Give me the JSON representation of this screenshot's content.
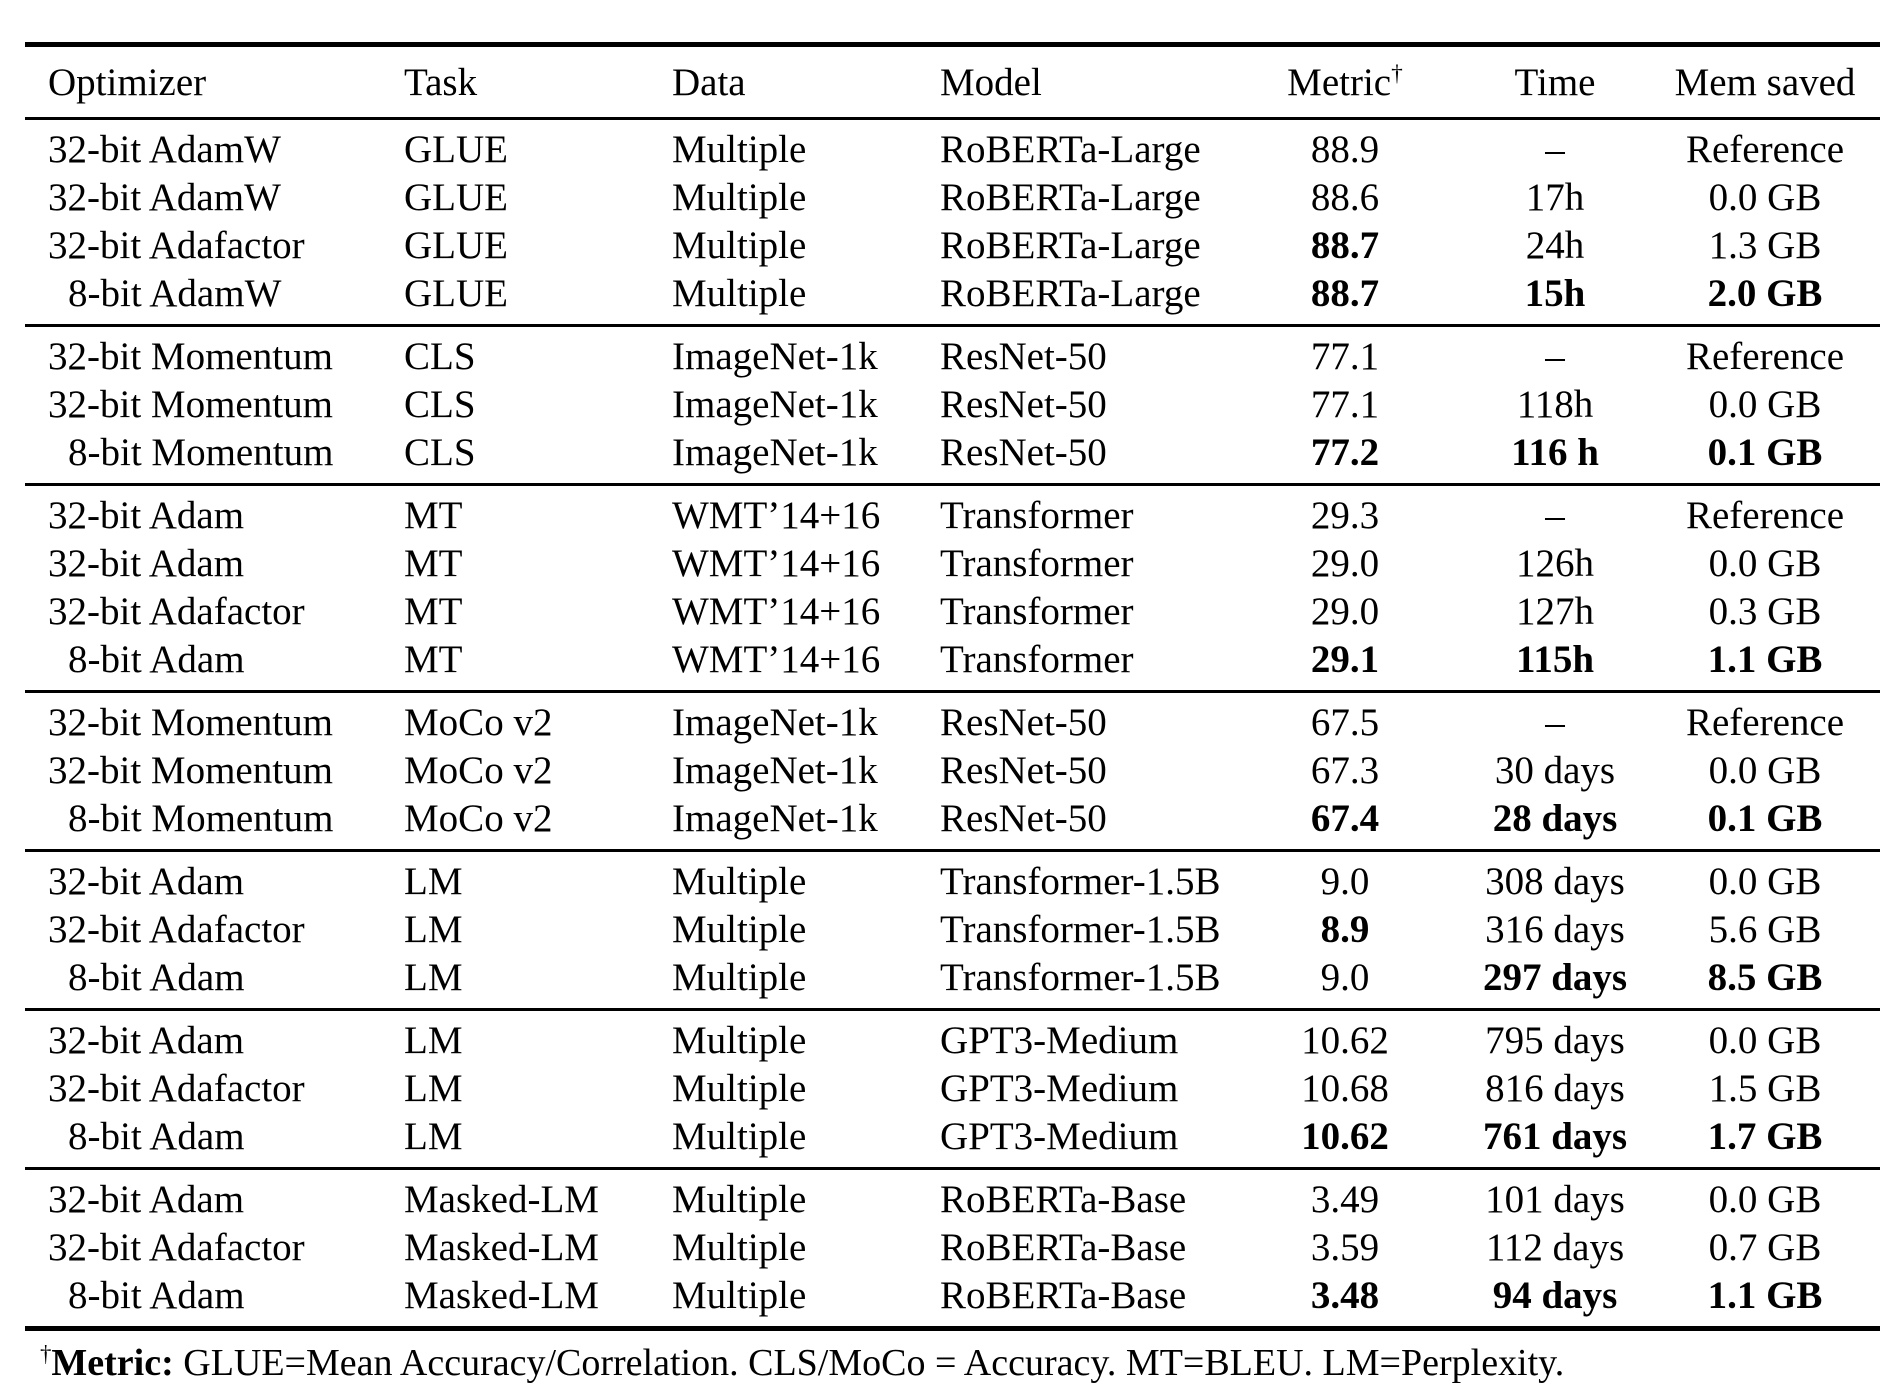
{
  "table": {
    "columns": [
      {
        "key": "optimizer",
        "label": "Optimizer"
      },
      {
        "key": "task",
        "label": "Task"
      },
      {
        "key": "data",
        "label": "Data"
      },
      {
        "key": "model",
        "label": "Model"
      },
      {
        "key": "metric",
        "label": "Metric",
        "superscript": "†"
      },
      {
        "key": "time",
        "label": "Time"
      },
      {
        "key": "mem",
        "label": "Mem saved"
      }
    ],
    "groups": [
      {
        "rows": [
          {
            "optimizer": "32-bit AdamW",
            "task": "GLUE",
            "data": "Multiple",
            "model": "RoBERTa-Large",
            "metric": "88.9",
            "time": "–",
            "mem": "Reference",
            "bold": []
          },
          {
            "optimizer": "32-bit AdamW",
            "task": "GLUE",
            "data": "Multiple",
            "model": "RoBERTa-Large",
            "metric": "88.6",
            "time": "17h",
            "mem": "0.0 GB",
            "bold": []
          },
          {
            "optimizer": "32-bit Adafactor",
            "task": "GLUE",
            "data": "Multiple",
            "model": "RoBERTa-Large",
            "metric": "88.7",
            "time": "24h",
            "mem": "1.3 GB",
            "bold": [
              "metric"
            ]
          },
          {
            "optimizer": "8-bit AdamW",
            "task": "GLUE",
            "data": "Multiple",
            "model": "RoBERTa-Large",
            "metric": "88.7",
            "time": "15h",
            "mem": "2.0 GB",
            "bold": [
              "metric",
              "time",
              "mem"
            ]
          }
        ]
      },
      {
        "rows": [
          {
            "optimizer": "32-bit Momentum",
            "task": "CLS",
            "data": "ImageNet-1k",
            "model": "ResNet-50",
            "metric": "77.1",
            "time": "–",
            "mem": "Reference",
            "bold": []
          },
          {
            "optimizer": "32-bit Momentum",
            "task": "CLS",
            "data": "ImageNet-1k",
            "model": "ResNet-50",
            "metric": "77.1",
            "time": "118h",
            "mem": "0.0 GB",
            "bold": []
          },
          {
            "optimizer": "8-bit Momentum",
            "task": "CLS",
            "data": "ImageNet-1k",
            "model": "ResNet-50",
            "metric": "77.2",
            "time": "116 h",
            "mem": "0.1 GB",
            "bold": [
              "metric",
              "time",
              "mem"
            ]
          }
        ]
      },
      {
        "rows": [
          {
            "optimizer": "32-bit Adam",
            "task": "MT",
            "data": "WMT’14+16",
            "model": "Transformer",
            "metric": "29.3",
            "time": "–",
            "mem": "Reference",
            "bold": []
          },
          {
            "optimizer": "32-bit Adam",
            "task": "MT",
            "data": "WMT’14+16",
            "model": "Transformer",
            "metric": "29.0",
            "time": "126h",
            "mem": "0.0 GB",
            "bold": []
          },
          {
            "optimizer": "32-bit Adafactor",
            "task": "MT",
            "data": "WMT’14+16",
            "model": "Transformer",
            "metric": "29.0",
            "time": "127h",
            "mem": "0.3 GB",
            "bold": []
          },
          {
            "optimizer": "8-bit Adam",
            "task": "MT",
            "data": "WMT’14+16",
            "model": "Transformer",
            "metric": "29.1",
            "time": "115h",
            "mem": "1.1 GB",
            "bold": [
              "metric",
              "time",
              "mem"
            ]
          }
        ]
      },
      {
        "rows": [
          {
            "optimizer": "32-bit Momentum",
            "task": "MoCo v2",
            "data": "ImageNet-1k",
            "model": "ResNet-50",
            "metric": "67.5",
            "time": "–",
            "mem": "Reference",
            "bold": []
          },
          {
            "optimizer": "32-bit Momentum",
            "task": "MoCo v2",
            "data": "ImageNet-1k",
            "model": "ResNet-50",
            "metric": "67.3",
            "time": "30 days",
            "mem": "0.0 GB",
            "bold": []
          },
          {
            "optimizer": "8-bit Momentum",
            "task": "MoCo v2",
            "data": "ImageNet-1k",
            "model": "ResNet-50",
            "metric": "67.4",
            "time": "28 days",
            "mem": "0.1 GB",
            "bold": [
              "metric",
              "time",
              "mem"
            ]
          }
        ]
      },
      {
        "rows": [
          {
            "optimizer": "32-bit Adam",
            "task": "LM",
            "data": "Multiple",
            "model": "Transformer-1.5B",
            "metric": "9.0",
            "time": "308 days",
            "mem": "0.0 GB",
            "bold": []
          },
          {
            "optimizer": "32-bit Adafactor",
            "task": "LM",
            "data": "Multiple",
            "model": "Transformer-1.5B",
            "metric": "8.9",
            "time": "316 days",
            "mem": "5.6 GB",
            "bold": [
              "metric"
            ]
          },
          {
            "optimizer": "8-bit Adam",
            "task": "LM",
            "data": "Multiple",
            "model": "Transformer-1.5B",
            "metric": "9.0",
            "time": "297 days",
            "mem": "8.5 GB",
            "bold": [
              "time",
              "mem"
            ]
          }
        ]
      },
      {
        "rows": [
          {
            "optimizer": "32-bit Adam",
            "task": "LM",
            "data": "Multiple",
            "model": "GPT3-Medium",
            "metric": "10.62",
            "time": "795 days",
            "mem": "0.0 GB",
            "bold": []
          },
          {
            "optimizer": "32-bit Adafactor",
            "task": "LM",
            "data": "Multiple",
            "model": "GPT3-Medium",
            "metric": "10.68",
            "time": "816 days",
            "mem": "1.5 GB",
            "bold": []
          },
          {
            "optimizer": "8-bit Adam",
            "task": "LM",
            "data": "Multiple",
            "model": "GPT3-Medium",
            "metric": "10.62",
            "time": "761 days",
            "mem": "1.7 GB",
            "bold": [
              "metric",
              "time",
              "mem"
            ]
          }
        ]
      },
      {
        "rows": [
          {
            "optimizer": "32-bit Adam",
            "task": "Masked-LM",
            "data": "Multiple",
            "model": "RoBERTa-Base",
            "metric": "3.49",
            "time": "101 days",
            "mem": "0.0 GB",
            "bold": []
          },
          {
            "optimizer": "32-bit Adafactor",
            "task": "Masked-LM",
            "data": "Multiple",
            "model": "RoBERTa-Base",
            "metric": "3.59",
            "time": "112 days",
            "mem": "0.7 GB",
            "bold": []
          },
          {
            "optimizer": "8-bit Adam",
            "task": "Masked-LM",
            "data": "Multiple",
            "model": "RoBERTa-Base",
            "metric": "3.48",
            "time": "94 days",
            "mem": "1.1 GB",
            "bold": [
              "metric",
              "time",
              "mem"
            ]
          }
        ]
      }
    ],
    "footnote": {
      "dagger": "†",
      "label": "Metric:",
      "text": " GLUE=Mean Accuracy/Correlation. CLS/MoCo = Accuracy. MT=BLEU. LM=Perplexity."
    }
  }
}
